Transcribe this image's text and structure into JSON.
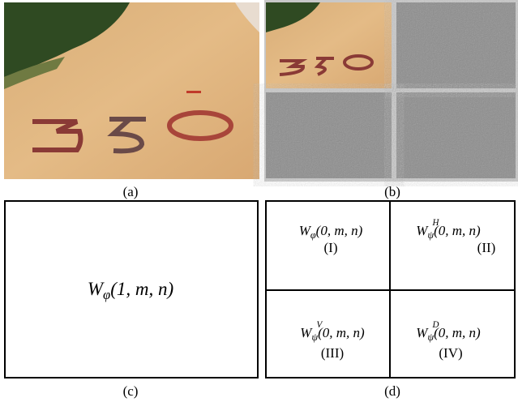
{
  "figure": {
    "panels": [
      {
        "label": "(a)"
      },
      {
        "label": "(b)"
      },
      {
        "label": "(c)",
        "formula": {
          "base": "W",
          "sub": "φ",
          "args": "(1, m, n)"
        }
      },
      {
        "label": "(d)",
        "quadrants": [
          {
            "formula": {
              "base": "W",
              "sub": "φ",
              "args": "(0, m, n)"
            },
            "numeral": "(I)"
          },
          {
            "formula": {
              "base": "W",
              "sub": "ψ",
              "sup": "H",
              "args": "(0, m, n)"
            },
            "numeral": "(II)"
          },
          {
            "formula": {
              "base": "W",
              "sub": "ψ",
              "sup": "V",
              "args": "(0, m, n)"
            },
            "numeral": "(III)"
          },
          {
            "formula": {
              "base": "W",
              "sub": "ψ",
              "sup": "D",
              "args": "(0, m, n)"
            },
            "numeral": "(IV)"
          }
        ]
      }
    ]
  }
}
